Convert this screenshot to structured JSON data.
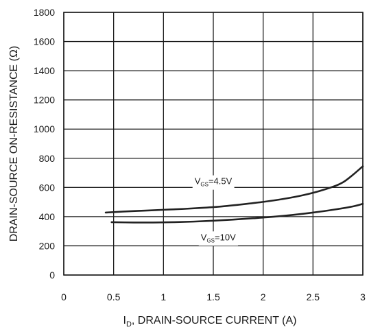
{
  "chart_data": {
    "type": "line",
    "title": "",
    "xlabel": {
      "main": "I",
      "sub": "D",
      "rest": ", DRAIN-SOURCE CURRENT (A)"
    },
    "ylabel": "DRAIN-SOURCE ON-RESISTANCE (Ω)",
    "xlim": [
      0,
      3
    ],
    "ylim": [
      0,
      1800
    ],
    "x_ticks": [
      0,
      0.5,
      1,
      1.5,
      2,
      2.5,
      3
    ],
    "x_tick_labels": [
      "0",
      "0.5",
      "1",
      "1.5",
      "2",
      "2.5",
      "3"
    ],
    "y_ticks": [
      0,
      200,
      400,
      600,
      800,
      1000,
      1200,
      1400,
      1600,
      1800
    ],
    "y_tick_labels": [
      "0",
      "200",
      "400",
      "600",
      "800",
      "1000",
      "1200",
      "1400",
      "1600",
      "1800"
    ],
    "grid": true,
    "series": [
      {
        "label": {
          "main": "V",
          "sub": "GS",
          "rest": "=4.5V"
        },
        "label_at": [
          1.5,
          622
        ],
        "x": [
          0.42,
          0.6,
          0.8,
          1.0,
          1.2,
          1.4,
          1.6,
          1.8,
          2.0,
          2.2,
          2.4,
          2.6,
          2.8,
          3.0
        ],
        "y": [
          428,
          435,
          441,
          447,
          453,
          461,
          471,
          485,
          501,
          521,
          547,
          583,
          635,
          745
        ]
      },
      {
        "label": {
          "main": "V",
          "sub": "GS",
          "rest": "=10V"
        },
        "label_at": [
          1.55,
          238
        ],
        "x": [
          0.48,
          0.7,
          0.9,
          1.1,
          1.3,
          1.5,
          1.7,
          1.9,
          2.1,
          2.3,
          2.5,
          2.7,
          2.9,
          3.0
        ],
        "y": [
          362,
          360,
          360,
          362,
          366,
          372,
          380,
          389,
          399,
          412,
          428,
          447,
          470,
          488
        ]
      }
    ]
  }
}
